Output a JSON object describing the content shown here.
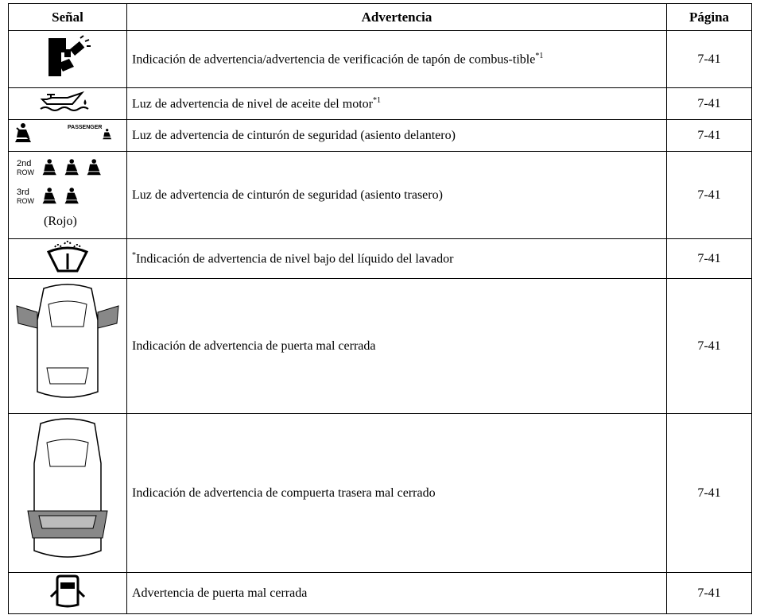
{
  "table": {
    "header": [
      "Señal",
      "Advertencia",
      "Página"
    ],
    "rows": [
      {
        "text": "Indicación de advertencia/advertencia de verificación de tapón de combus-tible",
        "note": "*1",
        "page": "7-41"
      },
      {
        "text": "Luz de advertencia de nivel de aceite del motor",
        "note": "*1",
        "page": "7-41"
      },
      {
        "icon_text": "PASSENGER",
        "text": "Luz de advertencia de cinturón de seguridad (asiento delantero)",
        "page": "7-41"
      },
      {
        "icon_text": [
          "2nd",
          "ROW",
          "3rd",
          "ROW",
          "(Rojo)"
        ],
        "text": "Luz de advertencia de cinturón de seguridad (asiento trasero)",
        "page": "7-41"
      },
      {
        "prefix": "*",
        "text": "Indicación de advertencia de nivel bajo del líquido del lavador",
        "page": "7-41"
      },
      {
        "text": "Indicación de advertencia de puerta mal cerrada",
        "page": "7-41"
      },
      {
        "text": "Indicación de advertencia de compuerta trasera mal cerrado",
        "page": "7-41"
      },
      {
        "text": "Advertencia de puerta mal cerrada",
        "page": "7-41"
      }
    ]
  }
}
